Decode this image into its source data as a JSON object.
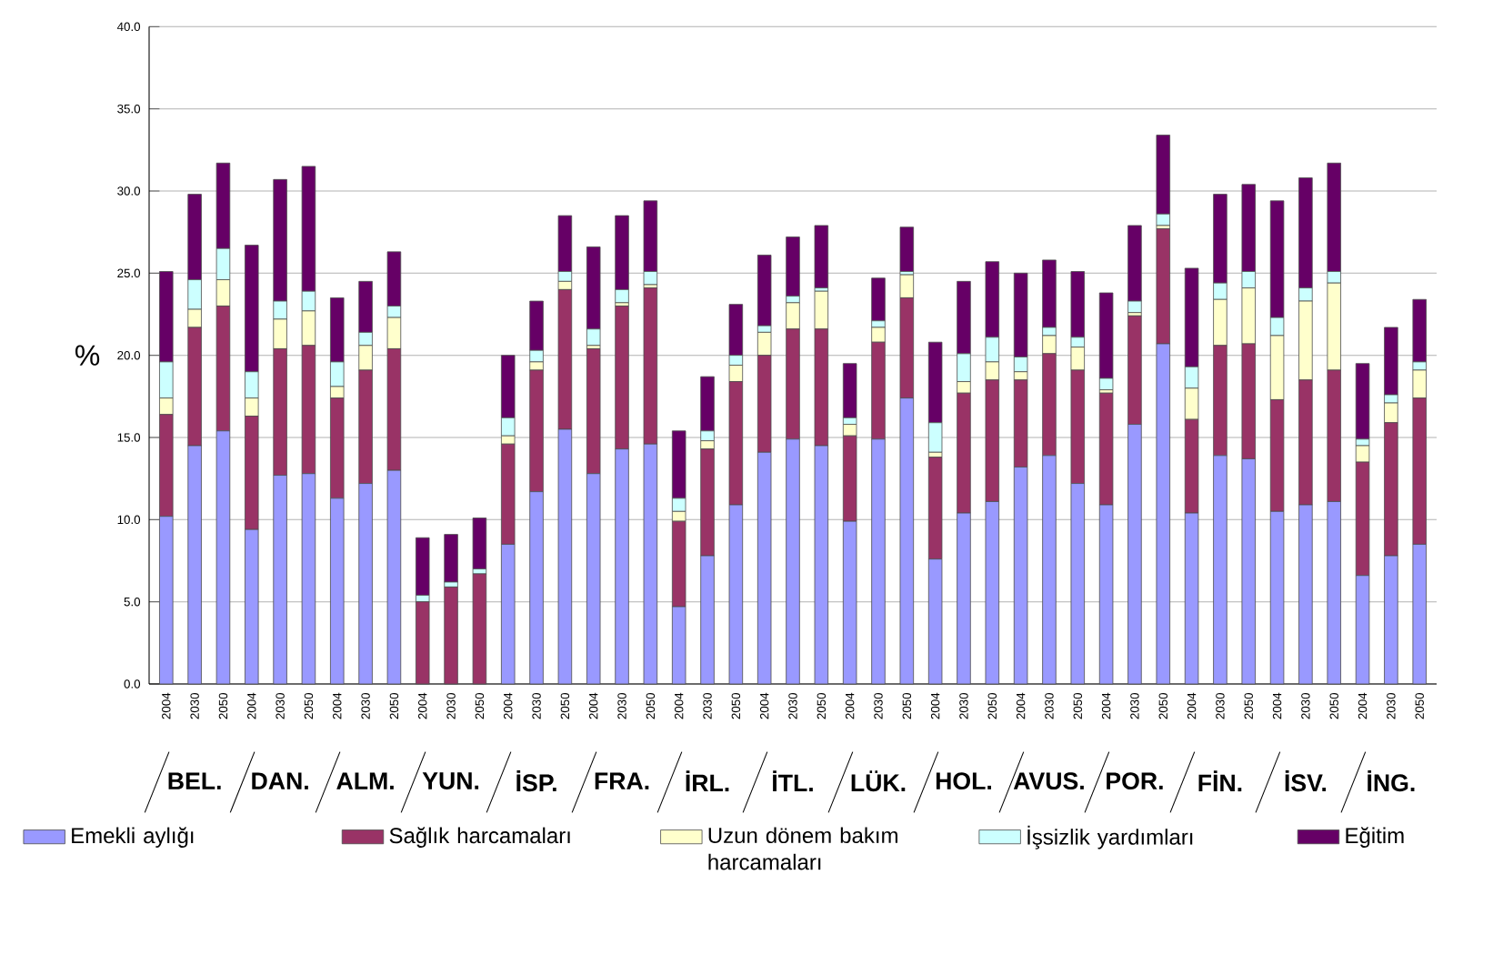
{
  "chart_data": {
    "type": "bar",
    "stacked": true,
    "ylabel": "%",
    "grid": "y",
    "legend": "bottom",
    "categories": [
      "2004",
      "2030",
      "2050",
      "2004",
      "2030",
      "2050",
      "2004",
      "2030",
      "2050",
      "2004",
      "2030",
      "2050",
      "2004",
      "2030",
      "2050",
      "2004",
      "2030",
      "2050",
      "2004",
      "2030",
      "2050",
      "2004",
      "2030",
      "2050",
      "2004",
      "2030",
      "2050",
      "2004",
      "2030",
      "2050",
      "2004",
      "2030",
      "2050",
      "2004",
      "2030",
      "2050",
      "2004",
      "2030",
      "2050",
      "2004",
      "2030",
      "2050",
      "2004",
      "2030",
      "2050"
    ],
    "annotations": [
      "BEL.",
      "DAN.",
      "ALM.",
      "YUN.",
      "İSP.",
      "FRA.",
      "İRL.",
      "İTL.",
      "LÜK.",
      "HOL.",
      "AVUS.",
      "POR.",
      "FİN.",
      "İSV.",
      "İNG."
    ],
    "ylim": [
      0,
      40
    ],
    "yticks": [
      {
        "value": 0,
        "label": "0.0"
      },
      {
        "value": 5,
        "label": "5.0"
      },
      {
        "value": 10,
        "label": "10.0"
      },
      {
        "value": 15,
        "label": "15.0"
      },
      {
        "value": 20,
        "label": "20.0"
      },
      {
        "value": 25,
        "label": "25.0"
      },
      {
        "value": 30,
        "label": "30.0"
      },
      {
        "value": 35,
        "label": "35.0"
      },
      {
        "value": 40,
        "label": "40.0"
      }
    ],
    "series": [
      {
        "name": "Emekli aylığı",
        "color": "#9999ff",
        "values": [
          10.2,
          14.5,
          15.4,
          9.4,
          12.7,
          12.8,
          11.3,
          12.2,
          13.0,
          0,
          0,
          0,
          8.5,
          11.7,
          15.5,
          12.8,
          14.3,
          14.6,
          4.7,
          7.8,
          10.9,
          14.1,
          14.9,
          14.5,
          9.9,
          14.9,
          17.4,
          7.6,
          10.4,
          11.1,
          13.2,
          13.9,
          12.2,
          10.9,
          15.8,
          20.7,
          10.4,
          13.9,
          13.7,
          10.5,
          10.9,
          11.1,
          6.6,
          7.8,
          8.5
        ]
      },
      {
        "name": "Sağlık harcamaları",
        "color": "#993366",
        "values": [
          6.2,
          7.2,
          7.6,
          6.9,
          7.7,
          7.8,
          6.1,
          6.9,
          7.4,
          5.0,
          5.9,
          6.7,
          6.1,
          7.4,
          8.5,
          7.6,
          8.7,
          9.5,
          5.2,
          6.5,
          7.5,
          5.9,
          6.7,
          7.1,
          5.2,
          5.9,
          6.1,
          6.2,
          7.3,
          7.4,
          5.3,
          6.2,
          6.9,
          6.8,
          6.6,
          7.0,
          5.7,
          6.7,
          7.0,
          6.8,
          7.6,
          8.0,
          6.9,
          8.1,
          8.9
        ]
      },
      {
        "name": "Uzun dönem bakım harcamaları",
        "color": "#ffffcc",
        "values": [
          1.0,
          1.1,
          1.6,
          1.1,
          1.8,
          2.1,
          0.7,
          1.5,
          1.9,
          0,
          0,
          0,
          0.5,
          0.5,
          0.5,
          0.2,
          0.2,
          0.2,
          0.6,
          0.5,
          1.0,
          1.4,
          1.6,
          2.3,
          0.7,
          0.9,
          1.4,
          0.3,
          0.7,
          1.1,
          0.5,
          1.1,
          1.4,
          0.2,
          0.2,
          0.2,
          1.9,
          2.8,
          3.4,
          3.9,
          4.8,
          5.3,
          1.0,
          1.2,
          1.7
        ]
      },
      {
        "name": "İşsizlik yardımları",
        "color": "#ccffff",
        "values": [
          2.2,
          1.8,
          1.9,
          1.6,
          1.1,
          1.2,
          1.5,
          0.8,
          0.7,
          0.4,
          0.3,
          0.3,
          1.1,
          0.7,
          0.6,
          1.0,
          0.8,
          0.8,
          0.8,
          0.6,
          0.6,
          0.4,
          0.4,
          0.2,
          0.4,
          0.4,
          0.2,
          1.8,
          1.7,
          1.5,
          0.9,
          0.5,
          0.6,
          0.7,
          0.7,
          0.7,
          1.3,
          1.0,
          1.0,
          1.1,
          0.8,
          0.7,
          0.4,
          0.5,
          0.5
        ]
      },
      {
        "name": "Eğitim",
        "color": "#660066",
        "values": [
          5.5,
          5.2,
          5.2,
          7.7,
          7.4,
          7.6,
          3.9,
          3.1,
          3.3,
          3.5,
          2.9,
          3.1,
          3.8,
          3.0,
          3.4,
          5.0,
          4.5,
          4.3,
          4.1,
          3.3,
          3.1,
          4.3,
          3.6,
          3.8,
          3.3,
          2.6,
          2.7,
          4.9,
          4.4,
          4.6,
          5.1,
          4.1,
          4.0,
          5.2,
          4.6,
          4.8,
          6.0,
          5.4,
          5.3,
          7.1,
          6.7,
          6.6,
          4.6,
          4.1,
          3.8
        ]
      }
    ]
  }
}
